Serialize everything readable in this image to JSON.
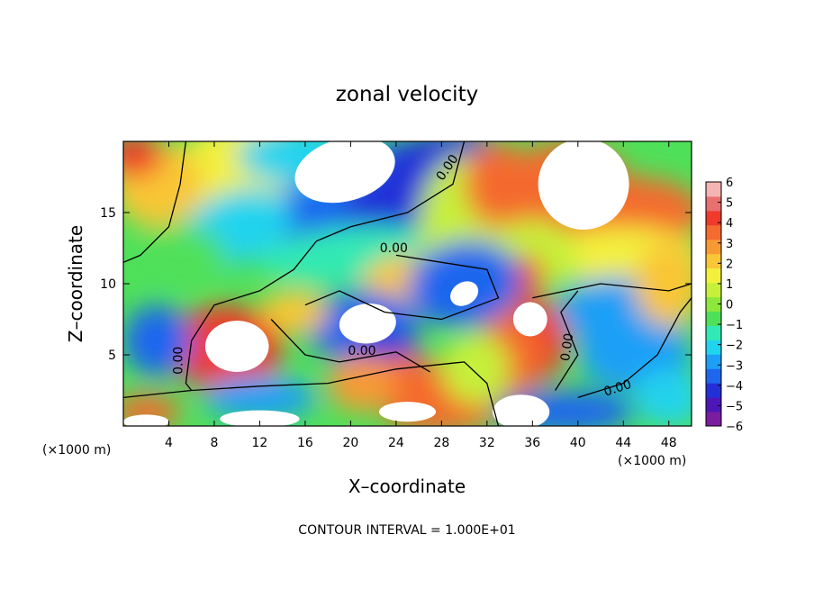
{
  "chart_data": {
    "type": "heatmap",
    "title": "zonal velocity",
    "xlabel": "X–coordinate",
    "ylabel": "Z–coordinate",
    "x_unit": "(×1000 m)",
    "x_unit_right": "(×1000 m)",
    "footer": "CONTOUR INTERVAL = 1.000E+01",
    "xlim": [
      0,
      50
    ],
    "ylim": [
      0,
      20
    ],
    "x_ticks": [
      4,
      8,
      12,
      16,
      20,
      24,
      28,
      32,
      36,
      40,
      44,
      48
    ],
    "y_ticks": [
      5,
      10,
      15
    ],
    "colorbar": {
      "min": -6,
      "max": 6,
      "ticks": [
        6,
        5,
        4,
        3,
        2,
        1,
        0,
        -1,
        -2,
        -3,
        -4,
        -5,
        -6
      ],
      "colors": [
        "#7a1d9e",
        "#4d16b8",
        "#2330d8",
        "#1f66ee",
        "#1c9ff6",
        "#20d3ee",
        "#30e9b4",
        "#4fe05a",
        "#8ce83a",
        "#c6f03a",
        "#f3f03c",
        "#f9c636",
        "#f79a34",
        "#f46a2f",
        "#ef3a2c",
        "#e8706f",
        "#f4b4b2"
      ]
    },
    "contour_labels": [
      {
        "text": "0.00",
        "x": 28.8,
        "y": 18.0,
        "angle": -55
      },
      {
        "text": "0.00",
        "x": 23.8,
        "y": 12.2,
        "angle": 0
      },
      {
        "text": "0.00",
        "x": 21.0,
        "y": 5.0,
        "angle": 0
      },
      {
        "text": "0.00",
        "x": 5.2,
        "y": 4.6,
        "angle": -90
      },
      {
        "text": "0.00",
        "x": 39.4,
        "y": 5.5,
        "angle": -82
      },
      {
        "text": "0.00",
        "x": 43.6,
        "y": 2.4,
        "angle": -18
      }
    ]
  }
}
